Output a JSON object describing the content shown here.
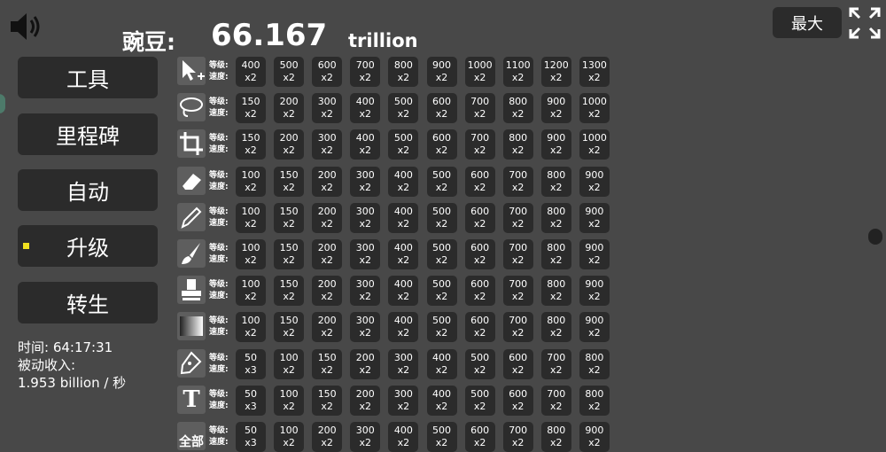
{
  "header": {
    "currency_label": "豌豆:",
    "amount": "66.167",
    "unit": "trillion",
    "max_button": "最大"
  },
  "menu": [
    "工具",
    "里程碑",
    "自动",
    "升级",
    "转生"
  ],
  "active_menu": 3,
  "stats": {
    "time": "时间: 64:17:31",
    "passive_label": "被动收入:",
    "passive_value": "1.953 billion / 秒"
  },
  "upgrades": {
    "level_label": "等级:",
    "speed_label": "速度:",
    "rows": [
      {
        "cells": [
          {
            "level": "400",
            "speed": "x2"
          },
          {
            "level": "500",
            "speed": "x2"
          },
          {
            "level": "600",
            "speed": "x2"
          },
          {
            "level": "700",
            "speed": "x2"
          },
          {
            "level": "800",
            "speed": "x2"
          },
          {
            "level": "900",
            "speed": "x2"
          },
          {
            "level": "1000",
            "speed": "x2"
          },
          {
            "level": "1100",
            "speed": "x2"
          },
          {
            "level": "1200",
            "speed": "x2"
          },
          {
            "level": "1300",
            "speed": "x2"
          }
        ]
      },
      {
        "cells": [
          {
            "level": "150",
            "speed": "x2"
          },
          {
            "level": "200",
            "speed": "x2"
          },
          {
            "level": "300",
            "speed": "x2"
          },
          {
            "level": "400",
            "speed": "x2"
          },
          {
            "level": "500",
            "speed": "x2"
          },
          {
            "level": "600",
            "speed": "x2"
          },
          {
            "level": "700",
            "speed": "x2"
          },
          {
            "level": "800",
            "speed": "x2"
          },
          {
            "level": "900",
            "speed": "x2"
          },
          {
            "level": "1000",
            "speed": "x2"
          }
        ]
      },
      {
        "cells": [
          {
            "level": "150",
            "speed": "x2"
          },
          {
            "level": "200",
            "speed": "x2"
          },
          {
            "level": "300",
            "speed": "x2"
          },
          {
            "level": "400",
            "speed": "x2"
          },
          {
            "level": "500",
            "speed": "x2"
          },
          {
            "level": "600",
            "speed": "x2"
          },
          {
            "level": "700",
            "speed": "x2"
          },
          {
            "level": "800",
            "speed": "x2"
          },
          {
            "level": "900",
            "speed": "x2"
          },
          {
            "level": "1000",
            "speed": "x2"
          }
        ]
      },
      {
        "cells": [
          {
            "level": "100",
            "speed": "x2"
          },
          {
            "level": "150",
            "speed": "x2"
          },
          {
            "level": "200",
            "speed": "x2"
          },
          {
            "level": "300",
            "speed": "x2"
          },
          {
            "level": "400",
            "speed": "x2"
          },
          {
            "level": "500",
            "speed": "x2"
          },
          {
            "level": "600",
            "speed": "x2"
          },
          {
            "level": "700",
            "speed": "x2"
          },
          {
            "level": "800",
            "speed": "x2"
          },
          {
            "level": "900",
            "speed": "x2"
          }
        ]
      },
      {
        "cells": [
          {
            "level": "100",
            "speed": "x2"
          },
          {
            "level": "150",
            "speed": "x2"
          },
          {
            "level": "200",
            "speed": "x2"
          },
          {
            "level": "300",
            "speed": "x2"
          },
          {
            "level": "400",
            "speed": "x2"
          },
          {
            "level": "500",
            "speed": "x2"
          },
          {
            "level": "600",
            "speed": "x2"
          },
          {
            "level": "700",
            "speed": "x2"
          },
          {
            "level": "800",
            "speed": "x2"
          },
          {
            "level": "900",
            "speed": "x2"
          }
        ]
      },
      {
        "cells": [
          {
            "level": "100",
            "speed": "x2"
          },
          {
            "level": "150",
            "speed": "x2"
          },
          {
            "level": "200",
            "speed": "x2"
          },
          {
            "level": "300",
            "speed": "x2"
          },
          {
            "level": "400",
            "speed": "x2"
          },
          {
            "level": "500",
            "speed": "x2"
          },
          {
            "level": "600",
            "speed": "x2"
          },
          {
            "level": "700",
            "speed": "x2"
          },
          {
            "level": "800",
            "speed": "x2"
          },
          {
            "level": "900",
            "speed": "x2"
          }
        ]
      },
      {
        "cells": [
          {
            "level": "100",
            "speed": "x2"
          },
          {
            "level": "150",
            "speed": "x2"
          },
          {
            "level": "200",
            "speed": "x2"
          },
          {
            "level": "300",
            "speed": "x2"
          },
          {
            "level": "400",
            "speed": "x2"
          },
          {
            "level": "500",
            "speed": "x2"
          },
          {
            "level": "600",
            "speed": "x2"
          },
          {
            "level": "700",
            "speed": "x2"
          },
          {
            "level": "800",
            "speed": "x2"
          },
          {
            "level": "900",
            "speed": "x2"
          }
        ]
      },
      {
        "cells": [
          {
            "level": "100",
            "speed": "x2"
          },
          {
            "level": "150",
            "speed": "x2"
          },
          {
            "level": "200",
            "speed": "x2"
          },
          {
            "level": "300",
            "speed": "x2"
          },
          {
            "level": "400",
            "speed": "x2"
          },
          {
            "level": "500",
            "speed": "x2"
          },
          {
            "level": "600",
            "speed": "x2"
          },
          {
            "level": "700",
            "speed": "x2"
          },
          {
            "level": "800",
            "speed": "x2"
          },
          {
            "level": "900",
            "speed": "x2"
          }
        ]
      },
      {
        "cells": [
          {
            "level": "50",
            "speed": "x3"
          },
          {
            "level": "100",
            "speed": "x2"
          },
          {
            "level": "150",
            "speed": "x2"
          },
          {
            "level": "200",
            "speed": "x2"
          },
          {
            "level": "300",
            "speed": "x2"
          },
          {
            "level": "400",
            "speed": "x2"
          },
          {
            "level": "500",
            "speed": "x2"
          },
          {
            "level": "600",
            "speed": "x2"
          },
          {
            "level": "700",
            "speed": "x2"
          },
          {
            "level": "800",
            "speed": "x2"
          }
        ]
      },
      {
        "icon_text": "T",
        "cells": [
          {
            "level": "50",
            "speed": "x3"
          },
          {
            "level": "100",
            "speed": "x2"
          },
          {
            "level": "150",
            "speed": "x2"
          },
          {
            "level": "200",
            "speed": "x2"
          },
          {
            "level": "300",
            "speed": "x2"
          },
          {
            "level": "400",
            "speed": "x2"
          },
          {
            "level": "500",
            "speed": "x2"
          },
          {
            "level": "600",
            "speed": "x2"
          },
          {
            "level": "700",
            "speed": "x2"
          },
          {
            "level": "800",
            "speed": "x2"
          }
        ]
      },
      {
        "icon_text": "全部",
        "cells": [
          {
            "level": "50",
            "speed": "x3"
          },
          {
            "level": "100",
            "speed": "x2"
          },
          {
            "level": "200",
            "speed": "x2"
          },
          {
            "level": "300",
            "speed": "x2"
          },
          {
            "level": "400",
            "speed": "x2"
          },
          {
            "level": "500",
            "speed": "x2"
          },
          {
            "level": "600",
            "speed": "x2"
          },
          {
            "level": "700",
            "speed": "x2"
          },
          {
            "level": "800",
            "speed": "x2"
          },
          {
            "level": "900",
            "speed": "x2"
          }
        ]
      }
    ]
  }
}
